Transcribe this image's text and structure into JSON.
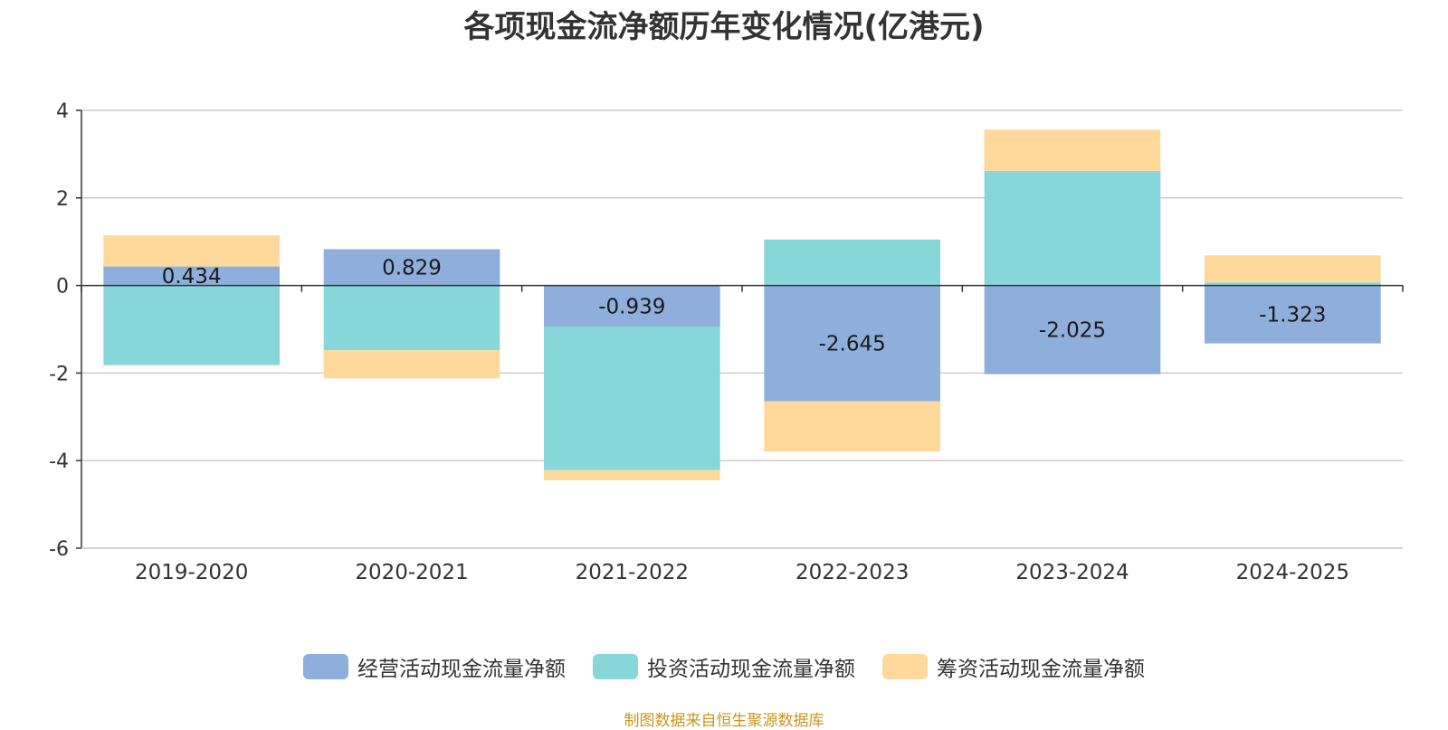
{
  "title": "各项现金流净额历年变化情况(亿港元)",
  "source_note": "制图数据来自恒生聚源数据库",
  "colors": {
    "operating": "#8eaedb",
    "investing": "#87d6d9",
    "financing": "#fed99b"
  },
  "chart_data": {
    "type": "bar",
    "stacked": true,
    "title": "各项现金流净额历年变化情况(亿港元)",
    "categories": [
      "2019-2020",
      "2020-2021",
      "2021-2022",
      "2022-2023",
      "2023-2024",
      "2024-2025"
    ],
    "series": [
      {
        "name": "经营活动现金流量净额",
        "color_key": "operating",
        "values": [
          0.434,
          0.829,
          -0.939,
          -2.645,
          -2.025,
          -1.323
        ],
        "labels": [
          "0.434",
          "0.829",
          "-0.939",
          "-2.645",
          "-2.025",
          "-1.323"
        ]
      },
      {
        "name": "投资活动现金流量净额",
        "color_key": "investing",
        "values": [
          -1.82,
          -1.48,
          -3.28,
          1.05,
          2.62,
          0.07
        ]
      },
      {
        "name": "筹资活动现金流量净额",
        "color_key": "financing",
        "values": [
          0.71,
          -0.64,
          -0.23,
          -1.15,
          0.94,
          0.62
        ]
      }
    ],
    "ylim": [
      -6,
      4
    ],
    "yticks": [
      "-6",
      "-4",
      "-2",
      "0",
      "2",
      "4"
    ],
    "grid": true,
    "legend_position": "bottom"
  }
}
